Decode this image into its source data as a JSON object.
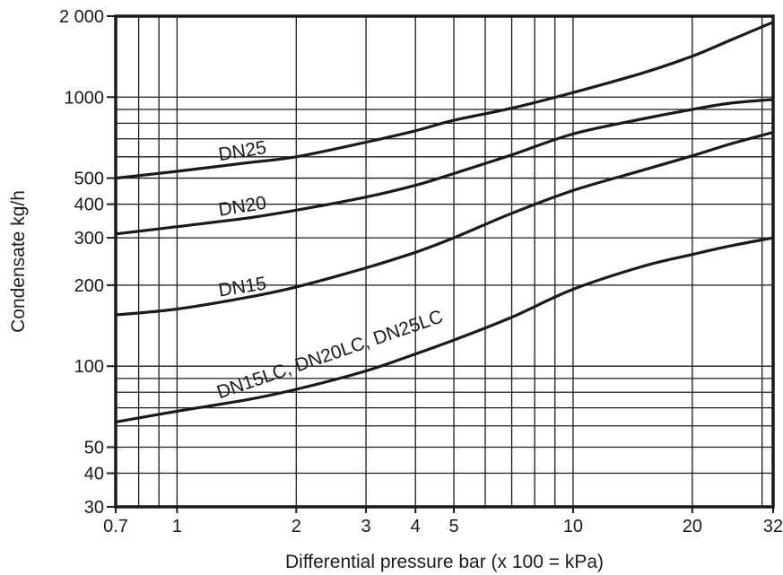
{
  "chart_data": {
    "type": "line",
    "title": "",
    "xlabel": "Differential pressure bar (x 100 = kPa)",
    "ylabel": "Condensate kg/h",
    "xscale": "log",
    "yscale": "log",
    "xlim": [
      0.7,
      32
    ],
    "ylim": [
      30,
      2000
    ],
    "grid": true,
    "legend": "none",
    "xticks": [
      {
        "value": 0.7,
        "label": "0.7"
      },
      {
        "value": 1,
        "label": "1"
      },
      {
        "value": 2,
        "label": "2"
      },
      {
        "value": 3,
        "label": "3"
      },
      {
        "value": 4,
        "label": "4"
      },
      {
        "value": 5,
        "label": "5"
      },
      {
        "value": 10,
        "label": "10"
      },
      {
        "value": 20,
        "label": "20"
      },
      {
        "value": 32,
        "label": "32"
      }
    ],
    "yticks": [
      {
        "value": 30,
        "label": "30"
      },
      {
        "value": 40,
        "label": "40"
      },
      {
        "value": 50,
        "label": "50"
      },
      {
        "value": 100,
        "label": "100"
      },
      {
        "value": 200,
        "label": "200"
      },
      {
        "value": 300,
        "label": "300"
      },
      {
        "value": 400,
        "label": "400"
      },
      {
        "value": 500,
        "label": "500"
      },
      {
        "value": 1000,
        "label": "1000"
      },
      {
        "value": 2000,
        "label": "2 000"
      }
    ],
    "xgrid": [
      0.7,
      0.8,
      0.9,
      1,
      2,
      3,
      4,
      5,
      6,
      7,
      8,
      9,
      10,
      20,
      30,
      32
    ],
    "ygrid": [
      30,
      40,
      50,
      60,
      70,
      80,
      90,
      100,
      200,
      300,
      400,
      500,
      600,
      700,
      800,
      900,
      1000,
      2000
    ],
    "series": [
      {
        "name": "DN25",
        "x": [
          0.7,
          1,
          1.5,
          2,
          3,
          4,
          5,
          7,
          10,
          15,
          20,
          25,
          32
        ],
        "y": [
          500,
          530,
          570,
          600,
          680,
          750,
          820,
          910,
          1040,
          1230,
          1420,
          1630,
          1900
        ]
      },
      {
        "name": "DN20",
        "x": [
          0.7,
          1,
          1.5,
          2,
          3,
          4,
          5,
          7,
          10,
          15,
          20,
          25,
          32
        ],
        "y": [
          310,
          330,
          355,
          380,
          425,
          470,
          520,
          610,
          730,
          830,
          900,
          950,
          980
        ]
      },
      {
        "name": "DN15",
        "x": [
          0.7,
          1,
          1.5,
          2,
          3,
          4,
          5,
          7,
          10,
          15,
          20,
          25,
          32
        ],
        "y": [
          155,
          163,
          180,
          197,
          232,
          265,
          300,
          370,
          450,
          535,
          605,
          670,
          740
        ]
      },
      {
        "name": "DN15LC, DN20LC, DN25LC",
        "x": [
          0.7,
          1,
          1.5,
          2,
          3,
          4,
          5,
          7,
          10,
          15,
          20,
          25,
          32
        ],
        "y": [
          62,
          68,
          75,
          82,
          96,
          111,
          125,
          152,
          193,
          235,
          260,
          280,
          300
        ]
      }
    ],
    "annotations": [
      {
        "text": "DN25",
        "series": 0,
        "x": 1.28,
        "angle": -9
      },
      {
        "text": "DN20",
        "series": 1,
        "x": 1.28,
        "angle": -9
      },
      {
        "text": "DN15",
        "series": 2,
        "x": 1.28,
        "angle": -9
      },
      {
        "text": "DN15LC, DN20LC, DN25LC",
        "series": 3,
        "x": 1.28,
        "angle": -19
      }
    ]
  }
}
